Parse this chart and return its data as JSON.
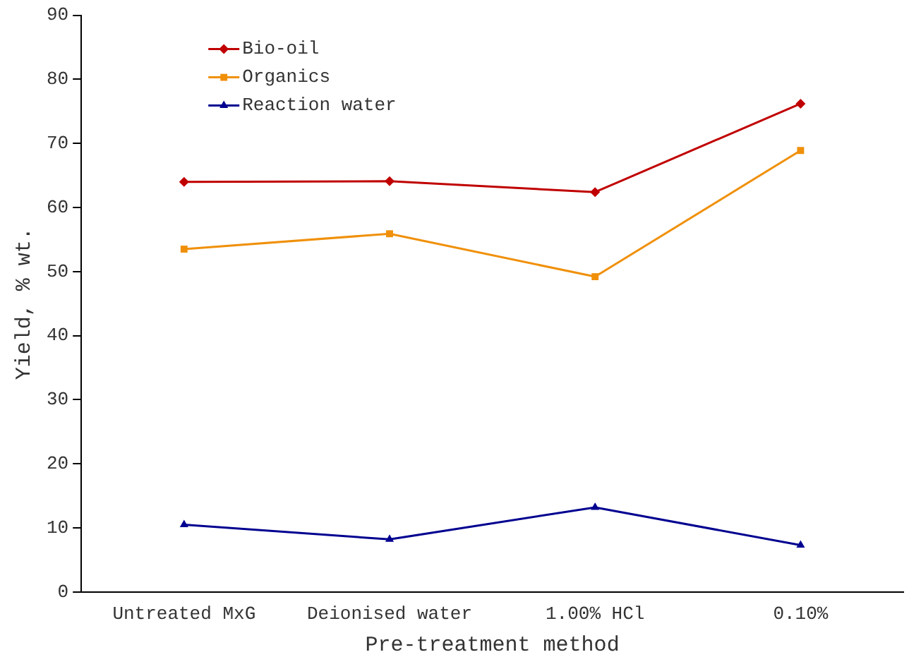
{
  "chart_data": {
    "type": "line",
    "xlabel": "Pre-treatment method",
    "ylabel": "Yield, % wt.",
    "categories": [
      "Untreated MxG",
      "Deionised water",
      "1.00% HCl",
      "0.10%"
    ],
    "series": [
      {
        "name": "Bio-oil",
        "color": "#c00000",
        "marker": "diamond",
        "values": [
          64.0,
          64.1,
          62.4,
          76.2
        ]
      },
      {
        "name": "Organics",
        "color": "#f0900a",
        "marker": "square",
        "values": [
          53.5,
          55.9,
          49.2,
          68.9
        ]
      },
      {
        "name": "Reaction water",
        "color": "#000090",
        "marker": "triangle",
        "values": [
          10.5,
          8.2,
          13.2,
          7.3
        ]
      }
    ],
    "ylim": [
      0,
      90
    ],
    "yticks": [
      0,
      10,
      20,
      30,
      40,
      50,
      60,
      70,
      80,
      90
    ],
    "grid": false,
    "legend": "top left",
    "line_style": "solid"
  }
}
